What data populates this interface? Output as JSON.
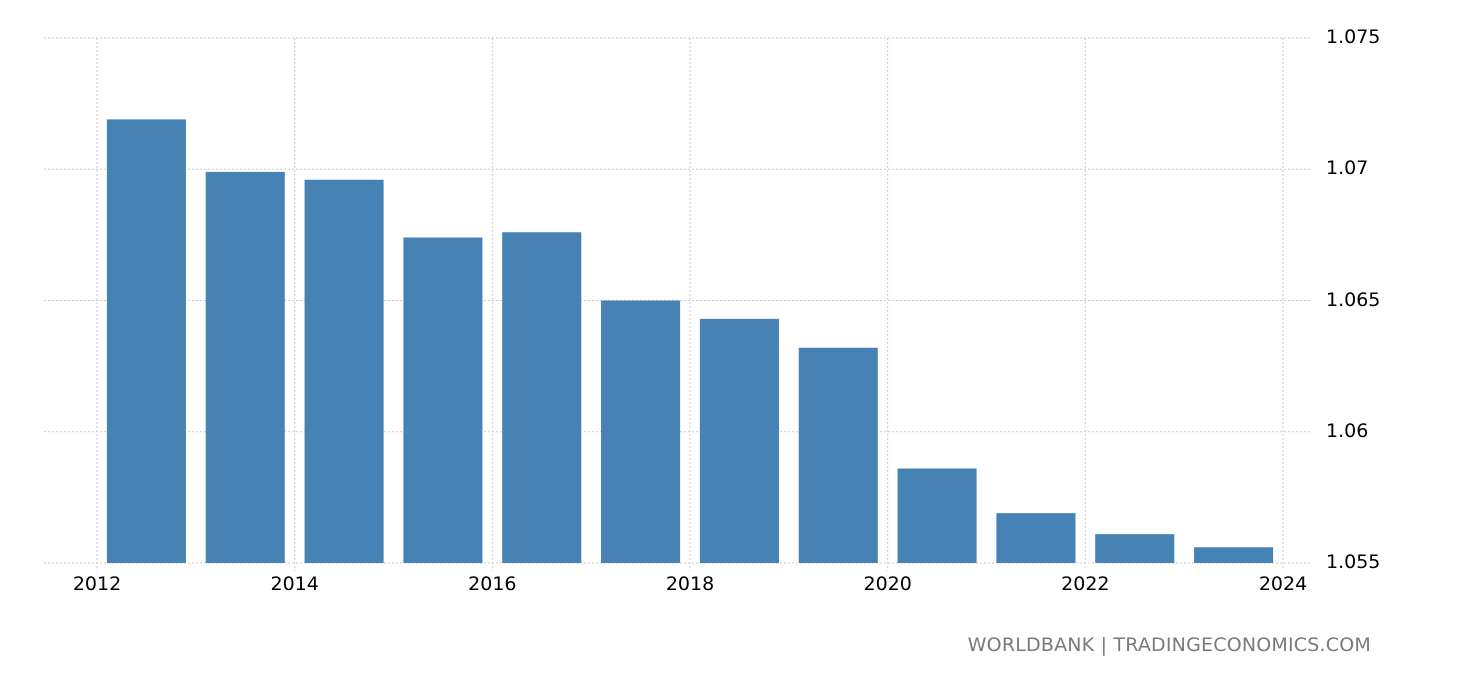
{
  "chart_data": {
    "type": "bar",
    "title": "",
    "xlabel": "",
    "ylabel": "",
    "categories": [
      "2012",
      "2013",
      "2014",
      "2015",
      "2016",
      "2017",
      "2018",
      "2019",
      "2020",
      "2021",
      "2022",
      "2023"
    ],
    "values": [
      1.0719,
      1.0699,
      1.0696,
      1.0674,
      1.0676,
      1.065,
      1.0643,
      1.0632,
      1.0586,
      1.0569,
      1.0561,
      1.0556
    ],
    "ylim": [
      1.055,
      1.075
    ],
    "y_ticks": [
      "1.075",
      "1.07",
      "1.065",
      "1.06",
      "1.055"
    ],
    "x_ticks": [
      "2012",
      "2014",
      "2016",
      "2018",
      "2020",
      "2022",
      "2024"
    ],
    "grid": true,
    "y_axis_position": "right",
    "bar_color": "#4682b4",
    "grid_color": "#cccccc"
  },
  "footer": {
    "credit": "WORLDBANK | TRADINGECONOMICS.COM"
  }
}
